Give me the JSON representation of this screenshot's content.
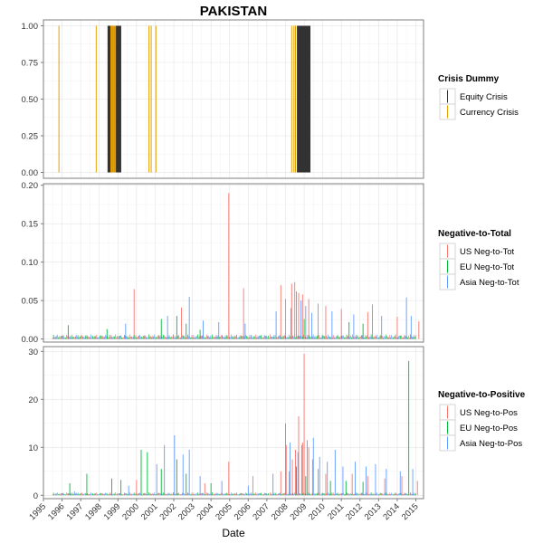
{
  "chart_data": {
    "type": "faceted-time-series",
    "title": "PAKISTAN",
    "xlabel": "Date",
    "x_domain": [
      "1995-01-01",
      "2015-06-01"
    ],
    "x_ticks": [
      "1995",
      "1996",
      "1997",
      "1998",
      "1999",
      "2000",
      "2001",
      "2002",
      "2003",
      "2004",
      "2005",
      "2006",
      "2007",
      "2008",
      "2009",
      "2010",
      "2011",
      "2012",
      "2013",
      "2014",
      "2015"
    ],
    "grid": true,
    "legend_position": "right",
    "panels": [
      {
        "id": "crisis",
        "type": "vertical-spikes",
        "ylim": [
          -0.04,
          1.04
        ],
        "yticks": [
          "0.00",
          "0.25",
          "0.50",
          "0.75",
          "1.00"
        ],
        "legend_title": "Crisis Dummy",
        "series": [
          {
            "name": "Equity Crisis",
            "color": "#333333",
            "value": 1,
            "dates": [
              "1998-07-01",
              "1998-07-15",
              "1998-08-01",
              "1998-08-15",
              "1998-09-01",
              "1998-09-15",
              "1998-10-01",
              "1998-10-15",
              "1998-11-01",
              "1998-11-15",
              "1998-12-01",
              "1998-12-15",
              "1999-01-01",
              "1999-01-15",
              "1999-02-01",
              "1999-02-15",
              "2008-09-01",
              "2008-09-15",
              "2008-10-01",
              "2008-10-15",
              "2008-11-01",
              "2008-11-15",
              "2008-12-01",
              "2008-12-15",
              "2009-01-01",
              "2009-01-15",
              "2009-02-01",
              "2009-02-15",
              "2009-03-01",
              "2009-03-15",
              "2009-04-01",
              "2009-04-15"
            ]
          },
          {
            "name": "Currency Crisis",
            "color": "#E69F00",
            "value": 1,
            "dates": [
              "1995-11-01",
              "1997-11-01",
              "1998-08-15",
              "1998-09-01",
              "1998-09-15",
              "1998-10-01",
              "1998-10-15",
              "1998-11-01",
              "1998-11-15",
              "2000-09-01",
              "2000-10-15",
              "2001-01-15",
              "2008-05-01",
              "2008-06-15",
              "2008-07-15"
            ]
          }
        ]
      },
      {
        "id": "neg_to_total",
        "type": "vertical-spikes",
        "ylim": [
          -0.004,
          0.202
        ],
        "yticks": [
          "0.00",
          "0.05",
          "0.10",
          "0.15",
          "0.20"
        ],
        "legend_title": "Negative-to-Total",
        "series": [
          {
            "name": "US Neg-to-Tot",
            "color": "#F8766D",
            "points": [
              [
                "1999-11-15",
                0.065
              ],
              [
                "2002-06-01",
                0.041
              ],
              [
                "2004-12-15",
                0.19
              ],
              [
                "2005-10-01",
                0.066
              ],
              [
                "2007-10-01",
                0.07
              ],
              [
                "2008-01-01",
                0.052
              ],
              [
                "2008-05-01",
                0.072
              ],
              [
                "2008-07-01",
                0.074
              ],
              [
                "2008-09-15",
                0.06
              ],
              [
                "2008-12-01",
                0.058
              ],
              [
                "2009-04-01",
                0.052
              ],
              [
                "2009-10-01",
                0.046
              ],
              [
                "2010-03-01",
                0.043
              ],
              [
                "2011-01-01",
                0.039
              ],
              [
                "2012-06-01",
                0.035
              ],
              [
                "2014-01-01",
                0.029
              ],
              [
                "2015-03-01",
                0.023
              ]
            ]
          },
          {
            "name": "EU Neg-to-Tot",
            "color": "#00BA38",
            "points": [
              [
                "1996-05-01",
                0.018
              ],
              [
                "1998-06-01",
                0.013
              ],
              [
                "2001-05-01",
                0.026
              ],
              [
                "2002-03-01",
                0.03
              ],
              [
                "2002-09-01",
                0.02
              ],
              [
                "2003-06-01",
                0.012
              ],
              [
                "2009-01-01",
                0.026
              ],
              [
                "2011-06-01",
                0.022
              ],
              [
                "2012-03-01",
                0.02
              ]
            ]
          },
          {
            "name": "Asia Neg-to-Tot",
            "color": "#619CFF",
            "points": [
              [
                "1999-06-01",
                0.02
              ],
              [
                "2001-09-01",
                0.03
              ],
              [
                "2002-11-01",
                0.055
              ],
              [
                "2003-08-01",
                0.024
              ],
              [
                "2004-06-01",
                0.022
              ],
              [
                "2005-11-01",
                0.02
              ],
              [
                "2007-07-01",
                0.036
              ],
              [
                "2008-04-15",
                0.04
              ],
              [
                "2008-08-01",
                0.062
              ],
              [
                "2008-11-01",
                0.05
              ],
              [
                "2009-02-01",
                0.043
              ],
              [
                "2009-06-01",
                0.034
              ],
              [
                "2010-07-01",
                0.036
              ],
              [
                "2011-09-01",
                0.032
              ],
              [
                "2012-09-01",
                0.045
              ],
              [
                "2013-03-01",
                0.03
              ],
              [
                "2014-07-01",
                0.054
              ],
              [
                "2014-10-01",
                0.03
              ]
            ]
          }
        ]
      },
      {
        "id": "neg_to_pos",
        "type": "vertical-spikes",
        "ylim": [
          -0.7,
          31
        ],
        "yticks": [
          "0",
          "10",
          "20",
          "30"
        ],
        "legend_title": "Negative-to-Positive",
        "series": [
          {
            "name": "US Neg-to-Pos",
            "color": "#F8766D",
            "points": [
              [
                "2000-01-01",
                3.2
              ],
              [
                "2003-09-01",
                2.5
              ],
              [
                "2004-12-15",
                7.0
              ],
              [
                "2006-04-01",
                4.0
              ],
              [
                "2007-10-01",
                5.0
              ],
              [
                "2008-01-15",
                10.5
              ],
              [
                "2008-03-15",
                5.0
              ],
              [
                "2008-05-15",
                7.5
              ],
              [
                "2008-07-15",
                9.5
              ],
              [
                "2008-09-15",
                16.5
              ],
              [
                "2008-12-01",
                11.0
              ],
              [
                "2009-01-01",
                29.5
              ],
              [
                "2009-04-01",
                10.0
              ],
              [
                "2009-06-15",
                7.5
              ],
              [
                "2009-10-01",
                5.5
              ],
              [
                "2010-03-01",
                4.5
              ],
              [
                "2011-08-01",
                4.5
              ],
              [
                "2012-06-01",
                4.0
              ],
              [
                "2013-05-01",
                3.5
              ],
              [
                "2014-04-01",
                4.0
              ],
              [
                "2015-02-01",
                3.0
              ]
            ]
          },
          {
            "name": "EU Neg-to-Pos",
            "color": "#00BA38",
            "points": [
              [
                "1996-06-01",
                2.5
              ],
              [
                "1997-05-01",
                4.5
              ],
              [
                "1998-09-01",
                3.5
              ],
              [
                "1999-03-01",
                3.2
              ],
              [
                "2000-04-01",
                9.5
              ],
              [
                "2000-08-01",
                9.0
              ],
              [
                "2001-05-01",
                5.5
              ],
              [
                "2002-03-01",
                7.5
              ],
              [
                "2002-09-01",
                4.5
              ],
              [
                "2004-01-01",
                2.5
              ],
              [
                "2008-08-01",
                6.0
              ],
              [
                "2009-02-01",
                4.0
              ],
              [
                "2010-06-01",
                3.0
              ],
              [
                "2011-04-01",
                3.0
              ],
              [
                "2012-03-01",
                2.8
              ],
              [
                "2014-08-15",
                28.0
              ]
            ]
          },
          {
            "name": "Asia Neg-to-Pos",
            "color": "#619CFF",
            "points": [
              [
                "1996-09-01",
                0.8
              ],
              [
                "1999-08-01",
                2.0
              ],
              [
                "2001-02-01",
                6.5
              ],
              [
                "2001-07-01",
                10.5
              ],
              [
                "2002-01-15",
                12.5
              ],
              [
                "2002-07-01",
                8.5
              ],
              [
                "2002-11-01",
                9.5
              ],
              [
                "2003-06-01",
                4.0
              ],
              [
                "2004-08-01",
                3.0
              ],
              [
                "2006-01-01",
                2.0
              ],
              [
                "2007-05-01",
                4.5
              ],
              [
                "2008-01-01",
                15.0
              ],
              [
                "2008-04-01",
                11.0
              ],
              [
                "2008-09-01",
                9.0
              ],
              [
                "2008-11-15",
                10.5
              ],
              [
                "2009-03-01",
                11.5
              ],
              [
                "2009-07-01",
                12.0
              ],
              [
                "2009-11-01",
                8.0
              ],
              [
                "2010-04-01",
                7.0
              ],
              [
                "2010-09-01",
                9.5
              ],
              [
                "2011-02-01",
                6.0
              ],
              [
                "2011-10-01",
                7.0
              ],
              [
                "2012-05-01",
                6.0
              ],
              [
                "2012-11-01",
                6.5
              ],
              [
                "2013-06-01",
                5.5
              ],
              [
                "2014-03-01",
                5.0
              ],
              [
                "2014-11-01",
                5.5
              ]
            ]
          }
        ]
      }
    ]
  }
}
